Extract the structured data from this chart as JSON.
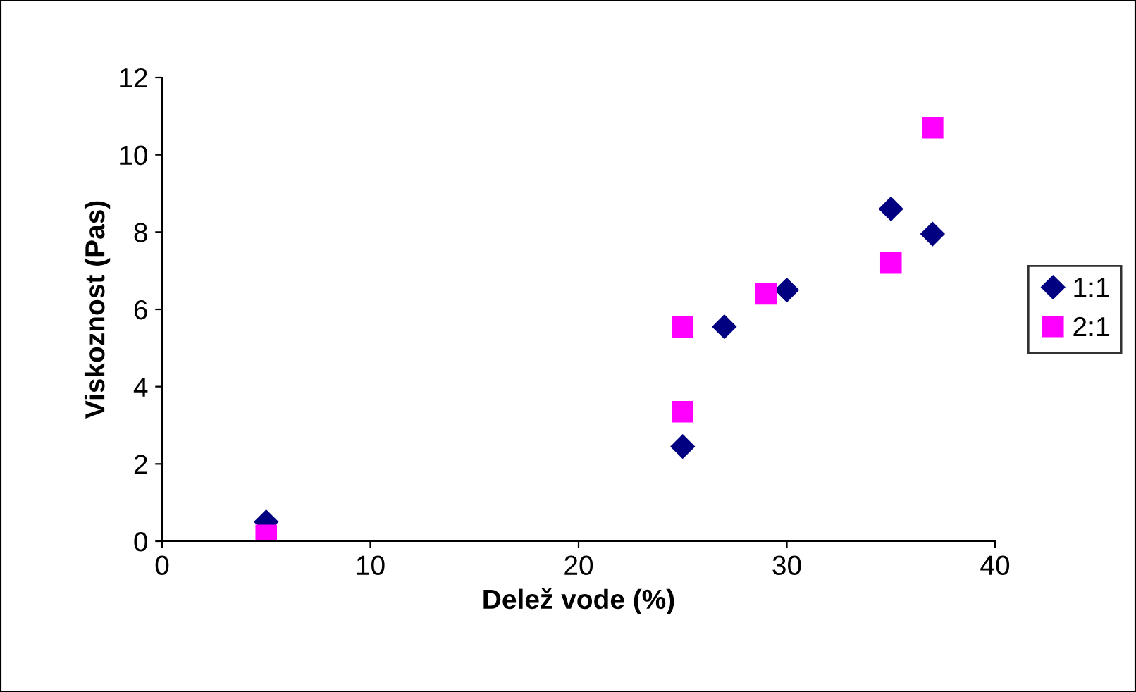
{
  "chart_data": {
    "type": "scatter",
    "xlabel": "Delež vode (%)",
    "ylabel": "Viskoznost (Pas)",
    "xlim": [
      0,
      40
    ],
    "xticks": [
      0,
      10,
      20,
      30,
      40
    ],
    "ylim": [
      0,
      12
    ],
    "yticks": [
      0,
      2,
      4,
      6,
      8,
      10,
      12
    ],
    "grid": false,
    "legend": "right",
    "series": [
      {
        "name": "1:1",
        "color": "#000080",
        "marker": "diamond",
        "x": [
          5,
          25,
          27,
          30,
          35,
          37
        ],
        "values": [
          0.5,
          2.45,
          5.55,
          6.5,
          8.6,
          7.95
        ]
      },
      {
        "name": "2:1",
        "color": "#ff00ff",
        "marker": "square",
        "x": [
          5,
          25,
          25,
          29,
          35,
          37
        ],
        "values": [
          0.15,
          3.35,
          5.55,
          6.4,
          7.2,
          10.7
        ]
      }
    ]
  }
}
